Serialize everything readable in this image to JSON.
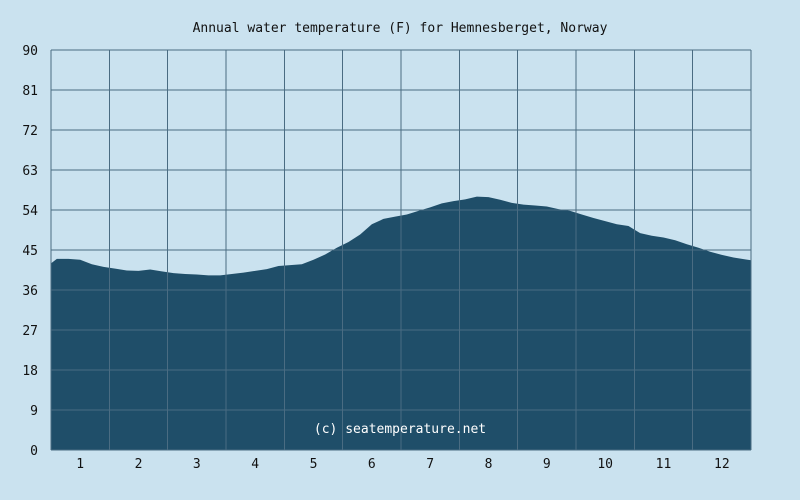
{
  "chart_data": {
    "type": "area",
    "title": "Annual water temperature (F) for Hemnesberget, Norway",
    "xlabel": "",
    "ylabel": "",
    "x_unit": "month",
    "ylim": [
      0,
      90
    ],
    "yticks": [
      0,
      9,
      18,
      27,
      36,
      45,
      54,
      63,
      72,
      81,
      90
    ],
    "categories": [
      "1",
      "2",
      "3",
      "4",
      "5",
      "6",
      "7",
      "8",
      "9",
      "10",
      "11",
      "12"
    ],
    "grid": true,
    "legend": "none",
    "annotation": "(c) seatemperature.net",
    "colors": {
      "background": "#cae2ef",
      "plot_background": "#cae2ef",
      "area_fill": "#1f4e69",
      "grid_line": "#4a6c82",
      "text": "#111111",
      "watermark": "#ffffff"
    },
    "series": [
      {
        "x": [
          0.5,
          0.6,
          0.8,
          1.0,
          1.2,
          1.4,
          1.6,
          1.8,
          2.0,
          2.2,
          2.4,
          2.6,
          2.8,
          3.0,
          3.2,
          3.4,
          3.6,
          3.8,
          4.0,
          4.2,
          4.4,
          4.6,
          4.8,
          5.0,
          5.2,
          5.4,
          5.6,
          5.8,
          6.0,
          6.2,
          6.4,
          6.6,
          6.8,
          7.0,
          7.2,
          7.4,
          7.6,
          7.8,
          8.0,
          8.2,
          8.4,
          8.6,
          8.8,
          9.0,
          9.2,
          9.4,
          9.6,
          9.8,
          10.0,
          10.2,
          10.4,
          10.6,
          10.8,
          11.0,
          11.2,
          11.4,
          11.6,
          11.8,
          12.0,
          12.2,
          12.4,
          12.5
        ],
        "values": [
          42.0,
          43.0,
          43.0,
          42.8,
          41.8,
          41.2,
          40.8,
          40.4,
          40.3,
          40.6,
          40.2,
          39.8,
          39.6,
          39.5,
          39.3,
          39.3,
          39.6,
          39.9,
          40.3,
          40.7,
          41.4,
          41.6,
          41.8,
          42.8,
          44.0,
          45.5,
          46.8,
          48.5,
          50.8,
          52.0,
          52.5,
          53.0,
          53.8,
          54.6,
          55.5,
          56.0,
          56.4,
          57.0,
          56.9,
          56.3,
          55.6,
          55.2,
          55.0,
          54.8,
          54.2,
          53.8,
          53.0,
          52.2,
          51.5,
          50.8,
          50.4,
          48.8,
          48.2,
          47.8,
          47.2,
          46.3,
          45.5,
          44.6,
          43.9,
          43.3,
          42.9,
          42.7
        ]
      }
    ]
  }
}
